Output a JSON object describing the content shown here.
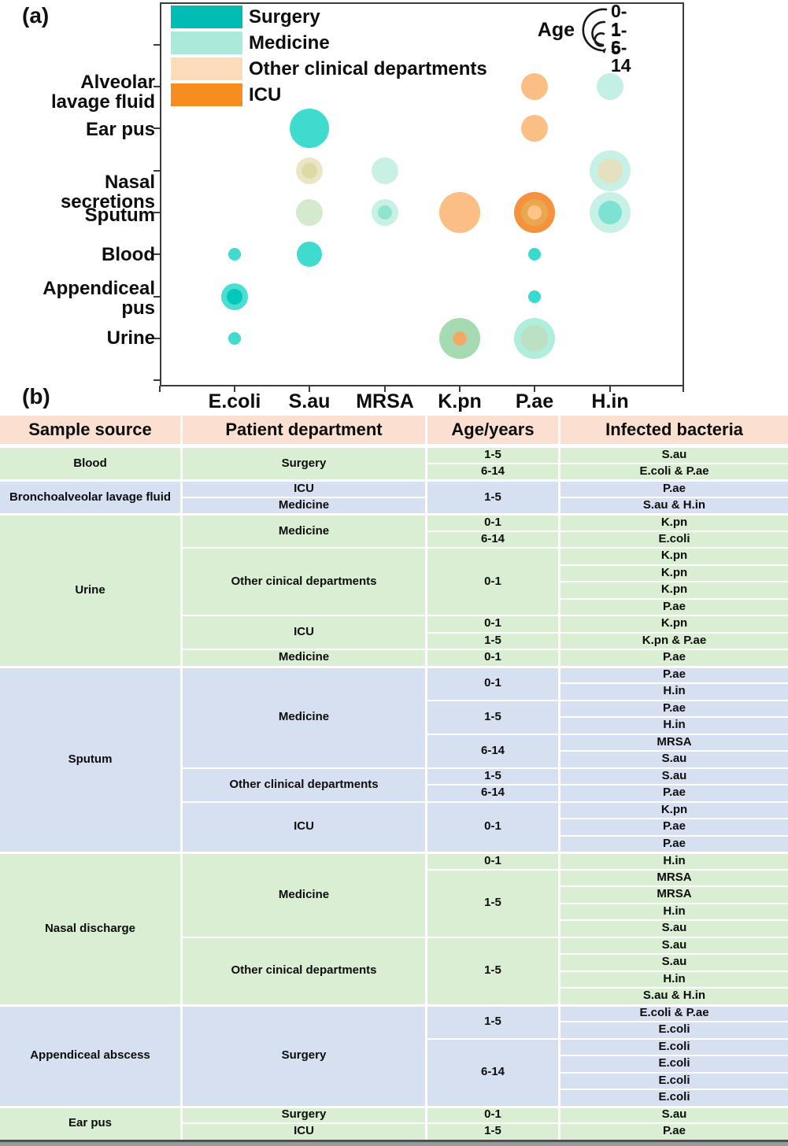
{
  "panel_a_label": "(a)",
  "panel_b_label": "(b)",
  "legend": {
    "items": [
      {
        "label": "Surgery",
        "color": "#00BCB4"
      },
      {
        "label": "Medicine",
        "color": "#ABE9DB"
      },
      {
        "label": "Other clinical departments",
        "color": "#FDDCBA"
      },
      {
        "label": "ICU",
        "color": "#F78D1E"
      }
    ]
  },
  "age_legend": {
    "label": "Age",
    "sizes": [
      "0-1",
      "1-5",
      "6-14"
    ],
    "size_mapping": {
      "0-1": "large",
      "1-5": "medium",
      "6-14": "small"
    }
  },
  "chart_data": {
    "type": "bubble",
    "title": "",
    "x_categories": [
      "E.coli",
      "S.au",
      "MRSA",
      "K.pn",
      "P.ae",
      "H.in"
    ],
    "y_categories": [
      "Alveolar lavage fluid",
      "Ear pus",
      "Nasal secretions",
      "Sputum",
      "Blood",
      "Appendiceal pus",
      "Urine"
    ],
    "y_category_lines": [
      [
        "Alveolar",
        "lavage fluid"
      ],
      [
        "Ear pus"
      ],
      [
        "Nasal",
        "secretions"
      ],
      [
        "Sputum"
      ],
      [
        "Blood"
      ],
      [
        "Appendiceal",
        "pus"
      ],
      [
        "Urine"
      ]
    ],
    "legend_position": "upper-left-inside",
    "grid": false,
    "bubbles": [
      {
        "x": "P.ae",
        "y": "Alveolar lavage fluid",
        "layers": [
          {
            "r": 17,
            "color": "#FBBE85"
          }
        ]
      },
      {
        "x": "H.in",
        "y": "Alveolar lavage fluid",
        "layers": [
          {
            "r": 17,
            "color": "#C3EFE5"
          }
        ]
      },
      {
        "x": "S.au",
        "y": "Ear pus",
        "layers": [
          {
            "r": 25,
            "color": "#3EDBCE"
          }
        ]
      },
      {
        "x": "P.ae",
        "y": "Ear pus",
        "layers": [
          {
            "r": 17,
            "color": "#FBBE85"
          }
        ]
      },
      {
        "x": "S.au",
        "y": "Nasal secretions",
        "layers": [
          {
            "r": 17,
            "color": "#EAE6C5"
          },
          {
            "r": 10,
            "color": "#DEDAA8"
          }
        ]
      },
      {
        "x": "MRSA",
        "y": "Nasal secretions",
        "layers": [
          {
            "r": 17,
            "color": "#C9F0E4"
          }
        ]
      },
      {
        "x": "H.in",
        "y": "Nasal secretions",
        "layers": [
          {
            "r": 26,
            "color": "#C7F1E7"
          },
          {
            "r": 16,
            "color": "#E3E1BF"
          }
        ]
      },
      {
        "x": "S.au",
        "y": "Sputum",
        "layers": [
          {
            "r": 17,
            "color": "#D5E9CC"
          }
        ]
      },
      {
        "x": "MRSA",
        "y": "Sputum",
        "layers": [
          {
            "r": 17,
            "color": "#C9F0E4"
          },
          {
            "r": 9,
            "color": "#8EE5D1"
          }
        ]
      },
      {
        "x": "K.pn",
        "y": "Sputum",
        "layers": [
          {
            "r": 26,
            "color": "#FBBE85"
          }
        ]
      },
      {
        "x": "P.ae",
        "y": "Sputum",
        "layers": [
          {
            "r": 26,
            "color": "#F6913D"
          },
          {
            "r": 17,
            "color": "#E9A84E"
          },
          {
            "r": 9,
            "color": "#FBC489"
          }
        ]
      },
      {
        "x": "H.in",
        "y": "Sputum",
        "layers": [
          {
            "r": 26,
            "color": "#C7F1E7"
          },
          {
            "r": 15,
            "color": "#7EE2D2"
          }
        ]
      },
      {
        "x": "E.coli",
        "y": "Blood",
        "layers": [
          {
            "r": 8,
            "color": "#3EDBCE"
          }
        ]
      },
      {
        "x": "S.au",
        "y": "Blood",
        "layers": [
          {
            "r": 16,
            "color": "#3EDBCE"
          }
        ]
      },
      {
        "x": "P.ae",
        "y": "Blood",
        "layers": [
          {
            "r": 8,
            "color": "#38DACE"
          }
        ]
      },
      {
        "x": "E.coli",
        "y": "Appendiceal pus",
        "layers": [
          {
            "r": 17,
            "color": "#4CDED3"
          },
          {
            "r": 10,
            "color": "#02C9B9"
          }
        ]
      },
      {
        "x": "P.ae",
        "y": "Appendiceal pus",
        "layers": [
          {
            "r": 8,
            "color": "#38DACE"
          }
        ]
      },
      {
        "x": "E.coli",
        "y": "Urine",
        "layers": [
          {
            "r": 8,
            "color": "#3EDBCE"
          }
        ]
      },
      {
        "x": "K.pn",
        "y": "Urine",
        "layers": [
          {
            "r": 26,
            "color": "#A6DBB1"
          },
          {
            "r": 9,
            "color": "#F3A966"
          }
        ]
      },
      {
        "x": "P.ae",
        "y": "Urine",
        "layers": [
          {
            "r": 26,
            "color": "#AFEDDC"
          },
          {
            "r": 17,
            "color": "#BCE0C4"
          }
        ]
      }
    ]
  },
  "table": {
    "headers": [
      "Sample source",
      "Patient department",
      "Age/years",
      "Infected bacteria"
    ],
    "row_colors": {
      "green": "#DAEED3",
      "blue": "#D6E0F1",
      "header": "#FBDFD0"
    },
    "rows": [
      {
        "bg": "green",
        "start": true,
        "cells": [
          {
            "c": 0,
            "t": "Blood",
            "rs": 2
          },
          {
            "c": 1,
            "t": "Surgery",
            "rs": 2
          },
          {
            "c": 2,
            "t": "1-5"
          },
          {
            "c": 3,
            "t": "S.au"
          }
        ]
      },
      {
        "bg": "green",
        "cells": [
          {
            "c": 2,
            "t": "6-14"
          },
          {
            "c": 3,
            "t": "E.coli & P.ae"
          }
        ]
      },
      {
        "bg": "blue",
        "start": true,
        "cells": [
          {
            "c": 0,
            "t": "Bronchoalveolar lavage fluid",
            "rs": 2
          },
          {
            "c": 1,
            "t": "ICU"
          },
          {
            "c": 2,
            "t": "1-5",
            "rs": 2
          },
          {
            "c": 3,
            "t": "P.ae"
          }
        ]
      },
      {
        "bg": "blue",
        "cells": [
          {
            "c": 1,
            "t": "Medicine"
          },
          {
            "c": 3,
            "t": "S.au & H.in"
          }
        ]
      },
      {
        "bg": "green",
        "start": true,
        "cells": [
          {
            "c": 0,
            "t": "Urine",
            "rs": 9
          },
          {
            "c": 1,
            "t": "Medicine",
            "rs": 2
          },
          {
            "c": 2,
            "t": "0-1"
          },
          {
            "c": 3,
            "t": "K.pn"
          }
        ]
      },
      {
        "bg": "green",
        "cells": [
          {
            "c": 2,
            "t": "6-14"
          },
          {
            "c": 3,
            "t": "E.coli"
          }
        ]
      },
      {
        "bg": "green",
        "cells": [
          {
            "c": 1,
            "t": "Other cinical departments",
            "rs": 4
          },
          {
            "c": 2,
            "t": "0-1",
            "rs": 4
          },
          {
            "c": 3,
            "t": "K.pn"
          }
        ]
      },
      {
        "bg": "green",
        "cells": [
          {
            "c": 3,
            "t": "K.pn"
          }
        ]
      },
      {
        "bg": "green",
        "cells": [
          {
            "c": 3,
            "t": "K.pn"
          }
        ]
      },
      {
        "bg": "green",
        "cells": [
          {
            "c": 3,
            "t": "P.ae"
          }
        ]
      },
      {
        "bg": "green",
        "cells": [
          {
            "c": 1,
            "t": "ICU",
            "rs": 2
          },
          {
            "c": 2,
            "t": "0-1"
          },
          {
            "c": 3,
            "t": "K.pn"
          }
        ]
      },
      {
        "bg": "green",
        "cells": [
          {
            "c": 2,
            "t": "1-5"
          },
          {
            "c": 3,
            "t": "K.pn & P.ae"
          }
        ]
      },
      {
        "bg": "green",
        "cells": [
          {
            "c": 1,
            "t": "Medicine"
          },
          {
            "c": 2,
            "t": "0-1"
          },
          {
            "c": 3,
            "t": "P.ae"
          }
        ]
      },
      {
        "bg": "blue",
        "start": true,
        "cells": [
          {
            "c": 0,
            "t": "Sputum",
            "rs": 11
          },
          {
            "c": 1,
            "t": "Medicine",
            "rs": 6
          },
          {
            "c": 2,
            "t": "0-1",
            "rs": 2
          },
          {
            "c": 3,
            "t": "P.ae"
          }
        ]
      },
      {
        "bg": "blue",
        "cells": [
          {
            "c": 3,
            "t": "H.in"
          }
        ]
      },
      {
        "bg": "blue",
        "cells": [
          {
            "c": 2,
            "t": "1-5",
            "rs": 2
          },
          {
            "c": 3,
            "t": "P.ae"
          }
        ]
      },
      {
        "bg": "blue",
        "cells": [
          {
            "c": 3,
            "t": "H.in"
          }
        ]
      },
      {
        "bg": "blue",
        "cells": [
          {
            "c": 2,
            "t": "6-14",
            "rs": 2
          },
          {
            "c": 3,
            "t": "MRSA"
          }
        ]
      },
      {
        "bg": "blue",
        "cells": [
          {
            "c": 3,
            "t": "S.au"
          }
        ]
      },
      {
        "bg": "blue",
        "cells": [
          {
            "c": 1,
            "t": "Other clinical departments",
            "rs": 2
          },
          {
            "c": 2,
            "t": "1-5"
          },
          {
            "c": 3,
            "t": "S.au"
          }
        ]
      },
      {
        "bg": "blue",
        "cells": [
          {
            "c": 2,
            "t": "6-14"
          },
          {
            "c": 3,
            "t": "P.ae"
          }
        ]
      },
      {
        "bg": "blue",
        "cells": [
          {
            "c": 1,
            "t": "ICU",
            "rs": 3
          },
          {
            "c": 2,
            "t": "0-1",
            "rs": 3
          },
          {
            "c": 3,
            "t": "K.pn"
          }
        ]
      },
      {
        "bg": "blue",
        "cells": [
          {
            "c": 3,
            "t": "P.ae"
          }
        ]
      },
      {
        "bg": "blue",
        "cells": [
          {
            "c": 3,
            "t": "P.ae"
          }
        ]
      },
      {
        "bg": "green",
        "start": true,
        "cells": [
          {
            "c": 0,
            "t": "Nasal discharge",
            "rs": 9
          },
          {
            "c": 1,
            "t": "Medicine",
            "rs": 5
          },
          {
            "c": 2,
            "t": "0-1"
          },
          {
            "c": 3,
            "t": "H.in"
          }
        ]
      },
      {
        "bg": "green",
        "cells": [
          {
            "c": 2,
            "t": "1-5",
            "rs": 4
          },
          {
            "c": 3,
            "t": "MRSA"
          }
        ]
      },
      {
        "bg": "green",
        "cells": [
          {
            "c": 3,
            "t": "MRSA"
          }
        ]
      },
      {
        "bg": "green",
        "cells": [
          {
            "c": 3,
            "t": "H.in"
          }
        ]
      },
      {
        "bg": "green",
        "cells": [
          {
            "c": 3,
            "t": "S.au"
          }
        ]
      },
      {
        "bg": "green",
        "cells": [
          {
            "c": 1,
            "t": "Other cinical departments",
            "rs": 4
          },
          {
            "c": 2,
            "t": "1-5",
            "rs": 4
          },
          {
            "c": 3,
            "t": "S.au"
          }
        ]
      },
      {
        "bg": "green",
        "cells": [
          {
            "c": 3,
            "t": "S.au"
          }
        ]
      },
      {
        "bg": "green",
        "cells": [
          {
            "c": 3,
            "t": "H.in"
          }
        ]
      },
      {
        "bg": "green",
        "cells": [
          {
            "c": 3,
            "t": "S.au & H.in"
          }
        ]
      },
      {
        "bg": "blue",
        "start": true,
        "cells": [
          {
            "c": 0,
            "t": "Appendiceal abscess",
            "rs": 6
          },
          {
            "c": 1,
            "t": "Surgery",
            "rs": 6
          },
          {
            "c": 2,
            "t": "1-5",
            "rs": 2
          },
          {
            "c": 3,
            "t": "E.coli & P.ae"
          }
        ]
      },
      {
        "bg": "blue",
        "cells": [
          {
            "c": 3,
            "t": "E.coli"
          }
        ]
      },
      {
        "bg": "blue",
        "cells": [
          {
            "c": 2,
            "t": "6-14",
            "rs": 4
          },
          {
            "c": 3,
            "t": "E.coli"
          }
        ]
      },
      {
        "bg": "blue",
        "cells": [
          {
            "c": 3,
            "t": "E.coli"
          }
        ]
      },
      {
        "bg": "blue",
        "cells": [
          {
            "c": 3,
            "t": "E.coli"
          }
        ]
      },
      {
        "bg": "blue",
        "cells": [
          {
            "c": 3,
            "t": "E.coli"
          }
        ]
      },
      {
        "bg": "green",
        "start": true,
        "cells": [
          {
            "c": 0,
            "t": "Ear pus",
            "rs": 2
          },
          {
            "c": 1,
            "t": "Surgery"
          },
          {
            "c": 2,
            "t": "0-1"
          },
          {
            "c": 3,
            "t": "S.au"
          }
        ]
      },
      {
        "bg": "green",
        "cells": [
          {
            "c": 1,
            "t": "ICU"
          },
          {
            "c": 2,
            "t": "1-5"
          },
          {
            "c": 3,
            "t": "P.ae"
          }
        ]
      }
    ]
  }
}
